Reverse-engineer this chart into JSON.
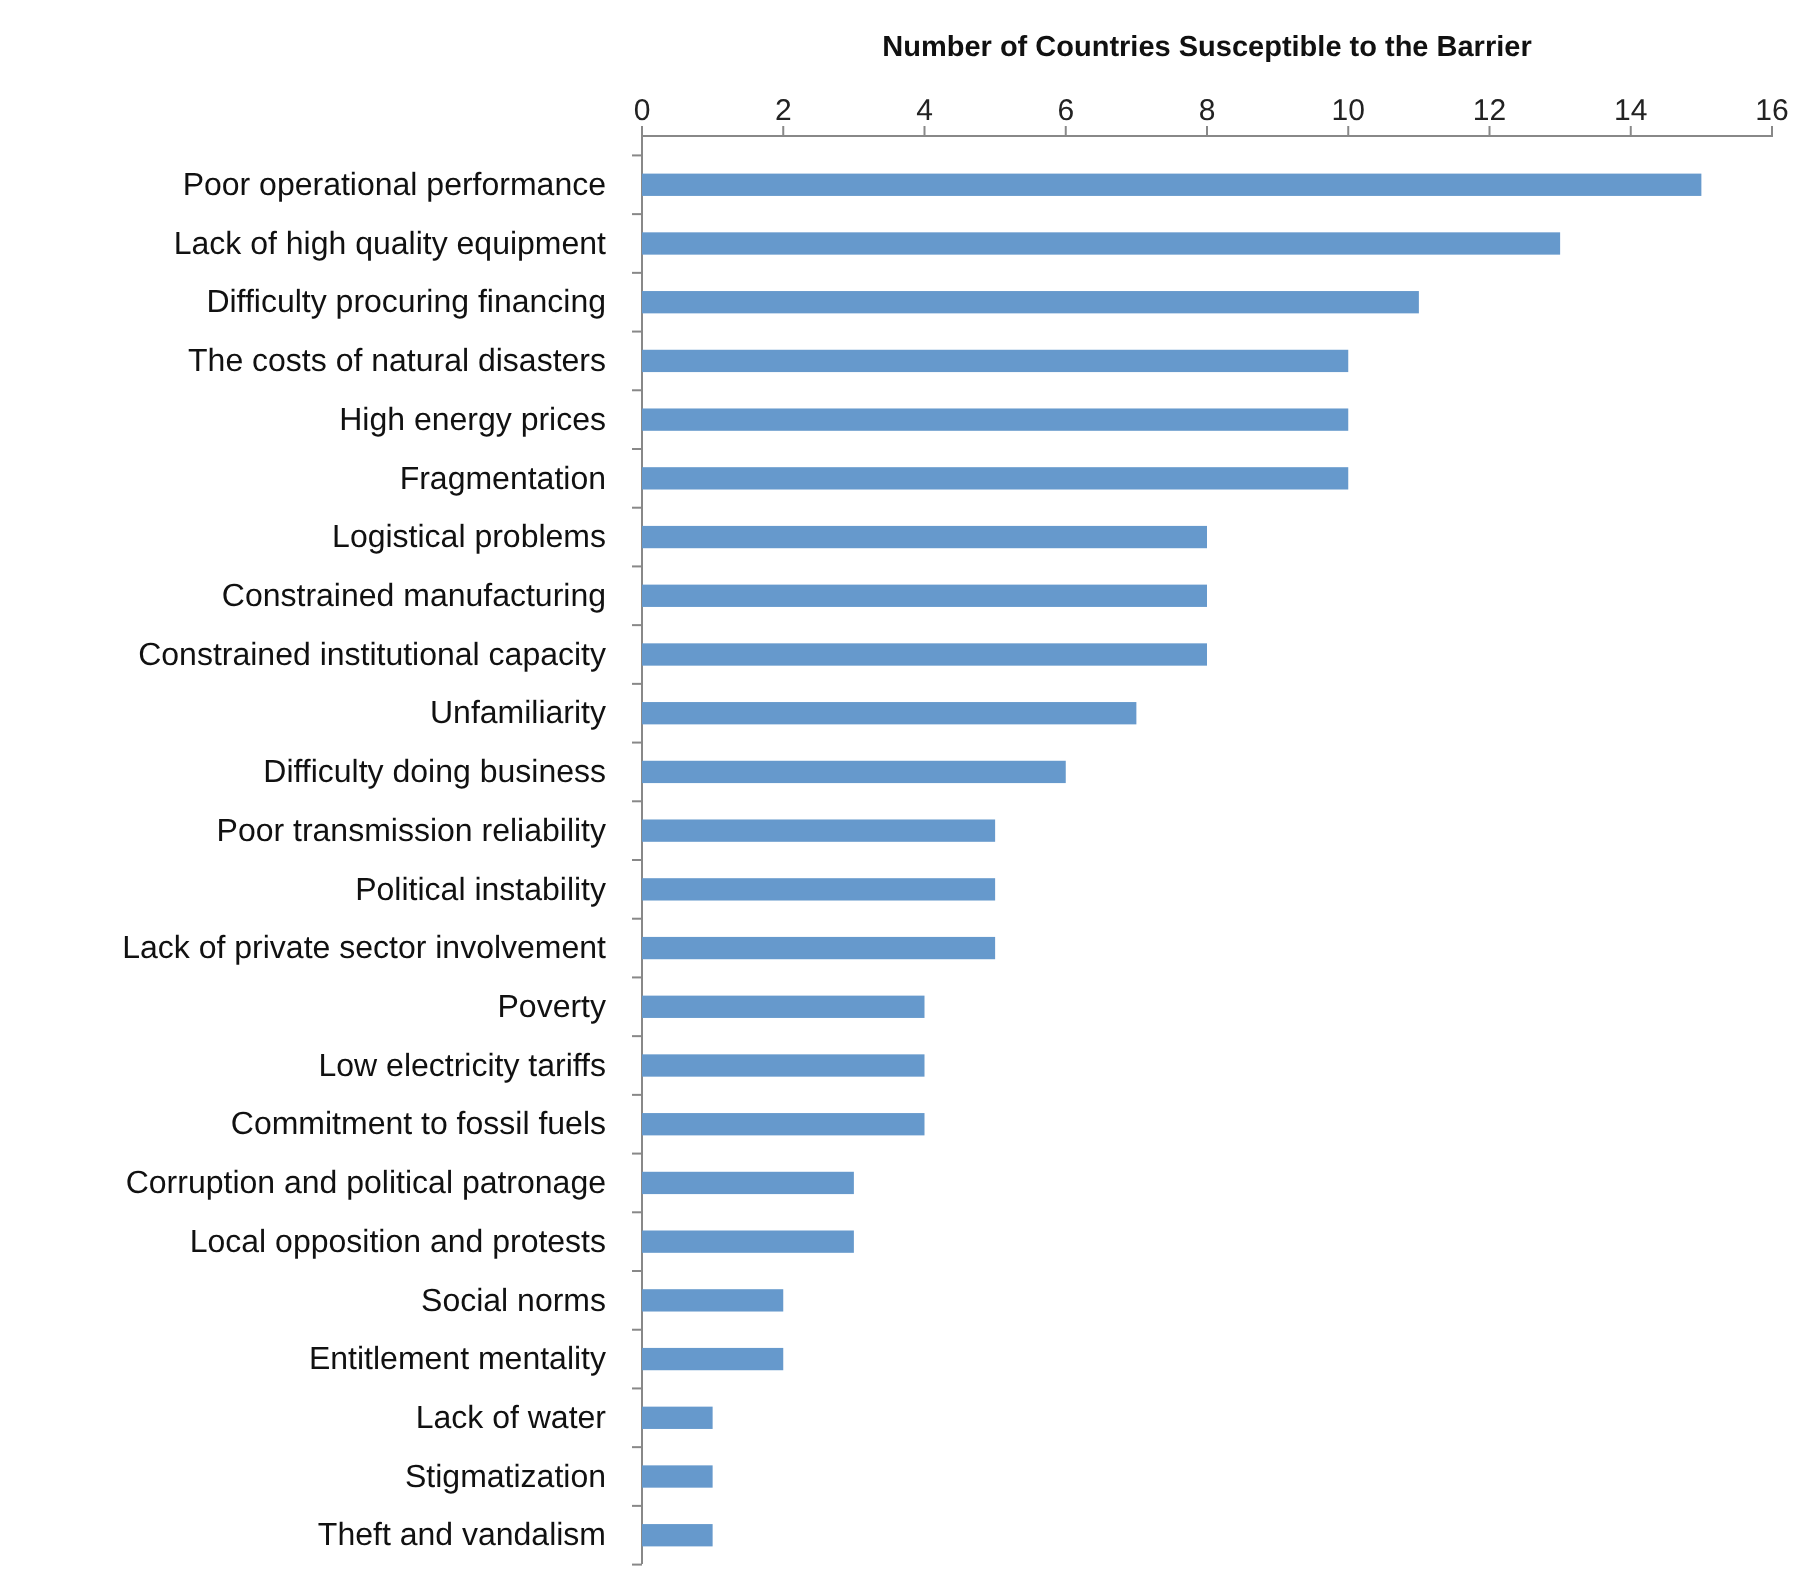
{
  "chart_data": {
    "type": "bar",
    "orientation": "horizontal",
    "xlabel": "Number of Countries Susceptible to the Barrier",
    "categories": [
      "Poor operational performance",
      "Lack of high quality equipment",
      "Difficulty procuring financing",
      "The costs of natural disasters",
      "High energy prices",
      "Fragmentation",
      "Logistical problems",
      "Constrained manufacturing",
      "Constrained institutional capacity",
      "Unfamiliarity",
      "Difficulty doing business",
      "Poor transmission reliability",
      "Political instability",
      "Lack of private sector involvement",
      "Poverty",
      "Low electricity tariffs",
      "Commitment to fossil fuels",
      "Corruption and political patronage",
      "Local opposition and protests",
      "Social norms",
      "Entitlement mentality",
      "Lack of water",
      "Stigmatization",
      "Theft and vandalism"
    ],
    "values": [
      15,
      13,
      11,
      10,
      10,
      10,
      8,
      8,
      8,
      7,
      6,
      5,
      5,
      5,
      4,
      4,
      4,
      3,
      3,
      2,
      2,
      1,
      1,
      1
    ],
    "color": "#6699cc",
    "xlim": [
      0,
      16
    ],
    "xticks": [
      0,
      2,
      4,
      6,
      8,
      10,
      12,
      14,
      16
    ],
    "grid": false
  }
}
